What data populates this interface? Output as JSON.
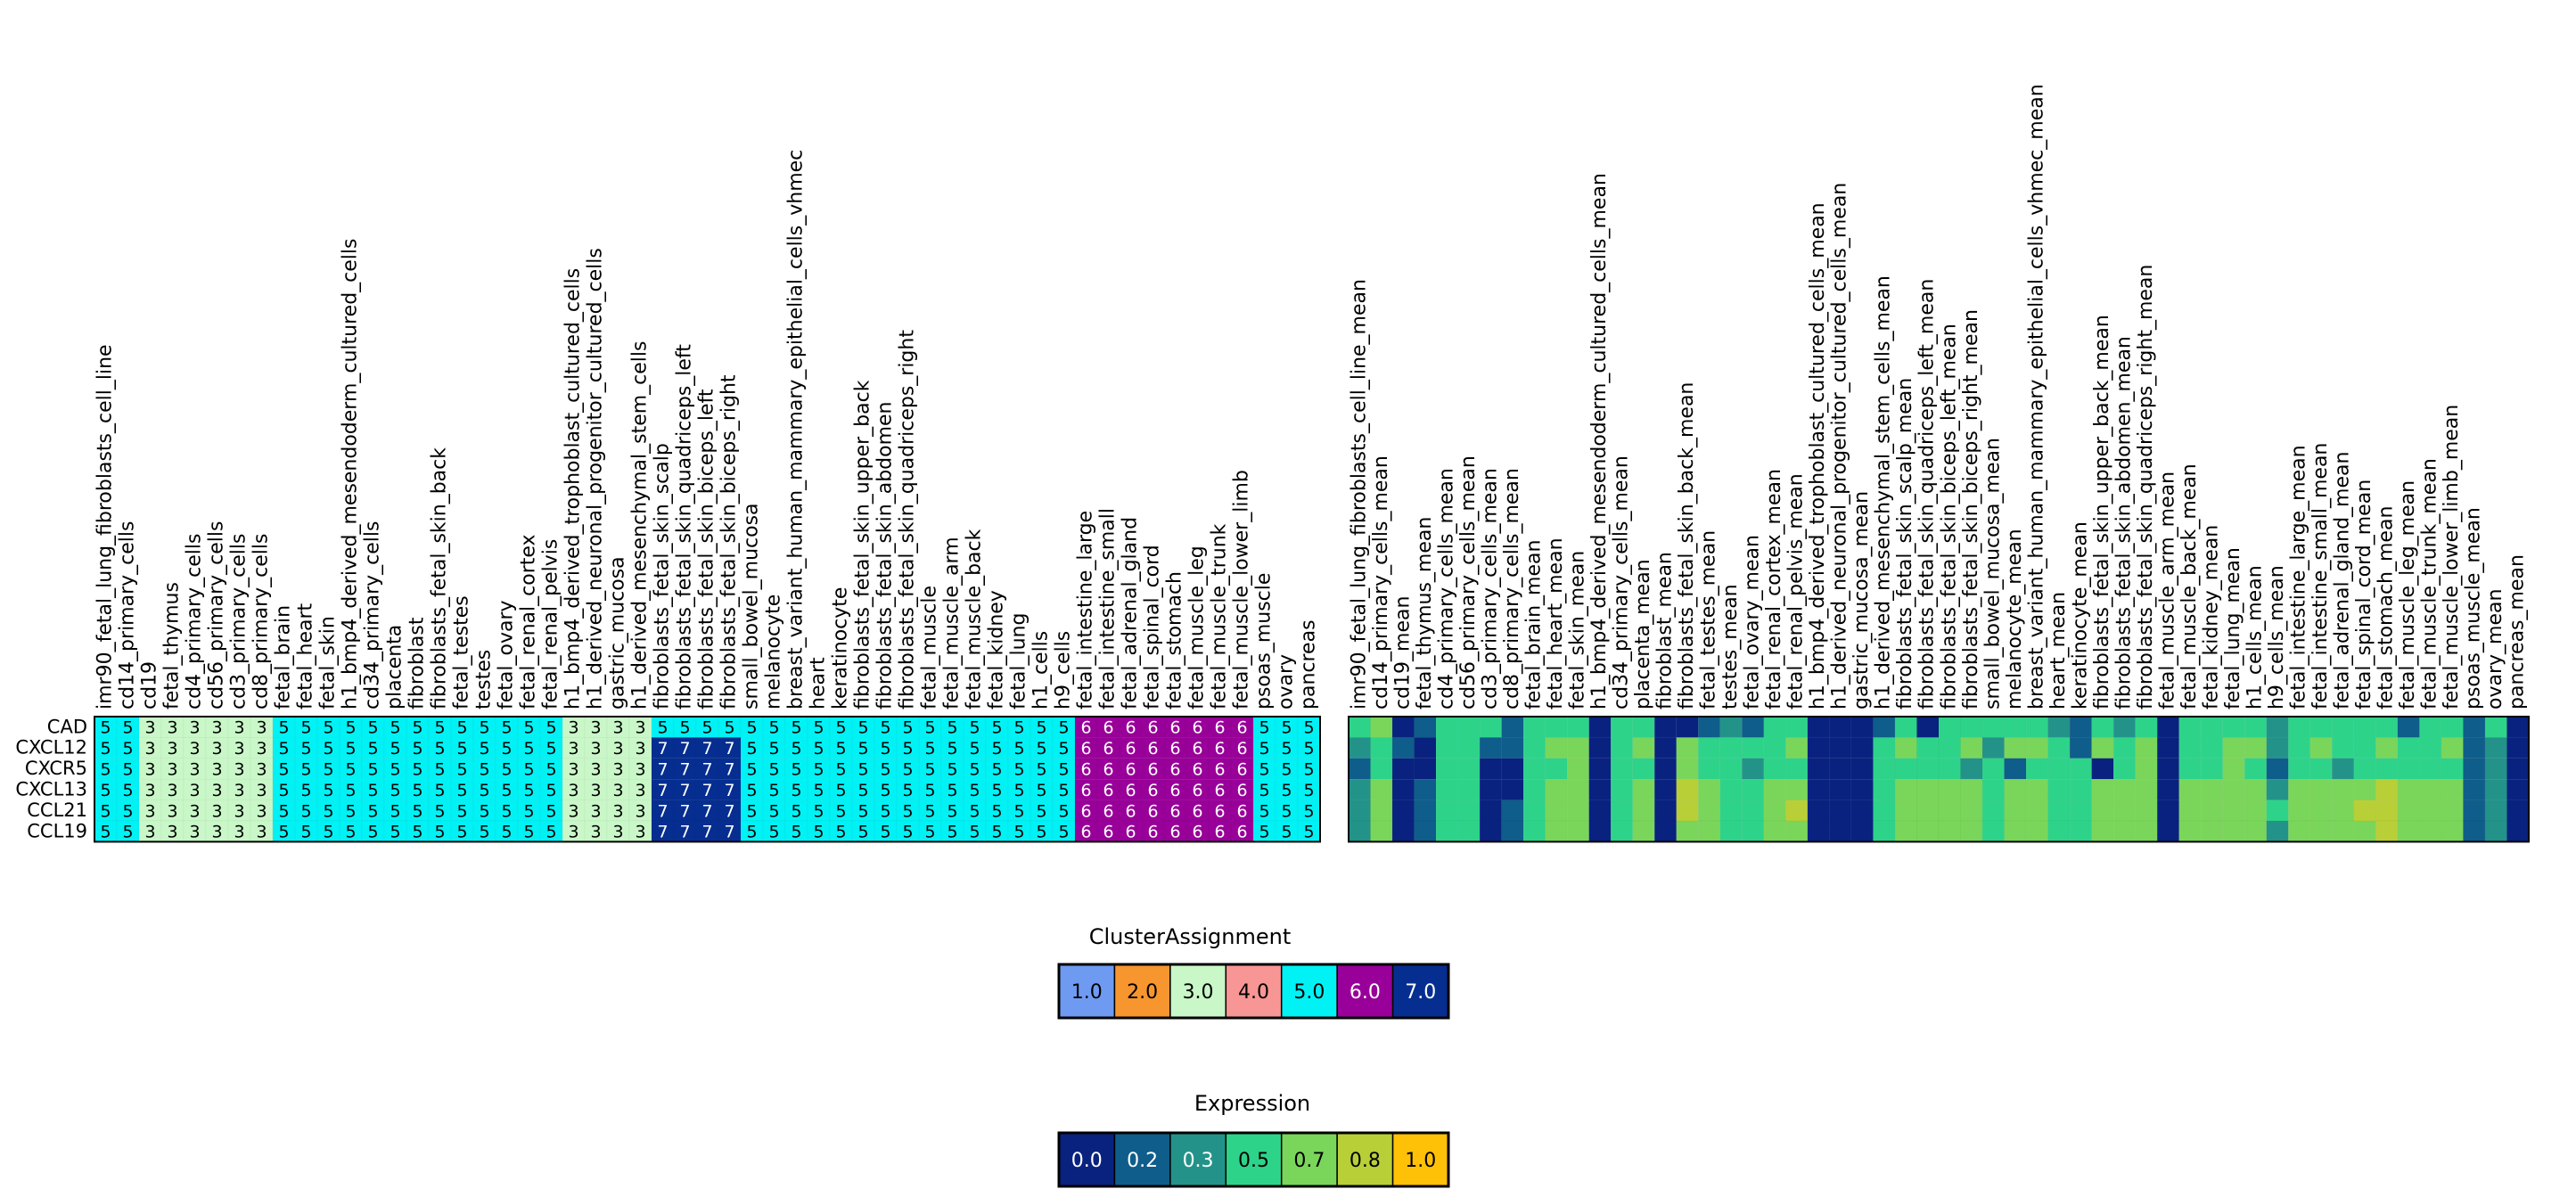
{
  "chart_data": [
    {
      "type": "heatmap",
      "title": "",
      "rows": [
        "CAD",
        "CXCL12",
        "CXCR5",
        "CXCL13",
        "CCL21",
        "CCL19"
      ],
      "columns": [
        "imr90_fetal_lung_fibroblasts_cell_line",
        "cd14_primary_cells",
        "cd19",
        "fetal_thymus",
        "cd4_primary_cells",
        "cd56_primary_cells",
        "cd3_primary_cells",
        "cd8_primary_cells",
        "fetal_brain",
        "fetal_heart",
        "fetal_skin",
        "h1_bmp4_derived_mesendoderm_cultured_cells",
        "cd34_primary_cells",
        "placenta",
        "fibroblast",
        "fibroblasts_fetal_skin_back",
        "fetal_testes",
        "testes",
        "fetal_ovary",
        "fetal_renal_cortex",
        "fetal_renal_pelvis",
        "h1_bmp4_derived_trophoblast_cultured_cells",
        "h1_derived_neuronal_progenitor_cultured_cells",
        "gastric_mucosa",
        "h1_derived_mesenchymal_stem_cells",
        "fibroblasts_fetal_skin_scalp",
        "fibroblasts_fetal_skin_quadriceps_left",
        "fibroblasts_fetal_skin_biceps_left",
        "fibroblasts_fetal_skin_biceps_right",
        "small_bowel_mucosa",
        "melanocyte",
        "breast_variant_human_mammary_epithelial_cells_vhmec",
        "heart",
        "keratinocyte",
        "fibroblasts_fetal_skin_upper_back",
        "fibroblasts_fetal_skin_abdomen",
        "fibroblasts_fetal_skin_quadriceps_right",
        "fetal_muscle",
        "fetal_muscle_arm",
        "fetal_muscle_back",
        "fetal_kidney",
        "fetal_lung",
        "h1_cells",
        "h9_cells",
        "fetal_intestine_large",
        "fetal_intestine_small",
        "fetal_adrenal_gland",
        "fetal_spinal_cord",
        "fetal_stomach",
        "fetal_muscle_leg",
        "fetal_muscle_trunk",
        "fetal_muscle_lower_limb",
        "psoas_muscle",
        "ovary",
        "pancreas"
      ],
      "cluster_by_column": [
        5,
        5,
        3,
        3,
        3,
        3,
        3,
        3,
        5,
        5,
        5,
        5,
        5,
        5,
        5,
        5,
        5,
        5,
        5,
        5,
        5,
        3,
        3,
        3,
        3,
        5,
        5,
        5,
        5,
        5,
        5,
        5,
        5,
        5,
        5,
        5,
        5,
        5,
        5,
        5,
        5,
        5,
        5,
        5,
        6,
        6,
        6,
        6,
        6,
        6,
        6,
        6,
        5,
        5,
        5
      ],
      "cad_cluster_overrides": [
        5,
        5,
        5,
        5
      ],
      "cad_override_start": 25
    },
    {
      "type": "heatmap",
      "title": "",
      "rows": [
        "CAD",
        "CXCL12",
        "CXCR5",
        "CXCL13",
        "CCL21",
        "CCL19"
      ],
      "columns": [
        "imr90_fetal_lung_fibroblasts_cell_line_mean",
        "cd14_primary_cells_mean",
        "cd19_mean",
        "fetal_thymus_mean",
        "cd4_primary_cells_mean",
        "cd56_primary_cells_mean",
        "cd3_primary_cells_mean",
        "cd8_primary_cells_mean",
        "fetal_brain_mean",
        "fetal_heart_mean",
        "fetal_skin_mean",
        "h1_bmp4_derived_mesendoderm_cultured_cells_mean",
        "cd34_primary_cells_mean",
        "placenta_mean",
        "fibroblast_mean",
        "fibroblasts_fetal_skin_back_mean",
        "fetal_testes_mean",
        "testes_mean",
        "fetal_ovary_mean",
        "fetal_renal_cortex_mean",
        "fetal_renal_pelvis_mean",
        "h1_bmp4_derived_trophoblast_cultured_cells_mean",
        "h1_derived_neuronal_progenitor_cultured_cells_mean",
        "gastric_mucosa_mean",
        "h1_derived_mesenchymal_stem_cells_mean",
        "fibroblasts_fetal_skin_scalp_mean",
        "fibroblasts_fetal_skin_quadriceps_left_mean",
        "fibroblasts_fetal_skin_biceps_left_mean",
        "fibroblasts_fetal_skin_biceps_right_mean",
        "small_bowel_mucosa_mean",
        "melanocyte_mean",
        "breast_variant_human_mammary_epithelial_cells_vhmec_mean",
        "heart_mean",
        "keratinocyte_mean",
        "fibroblasts_fetal_skin_upper_back_mean",
        "fibroblasts_fetal_skin_abdomen_mean",
        "fibroblasts_fetal_skin_quadriceps_right_mean",
        "fetal_muscle_arm_mean",
        "fetal_muscle_back_mean",
        "fetal_kidney_mean",
        "fetal_lung_mean",
        "h1_cells_mean",
        "h9_cells_mean",
        "fetal_intestine_large_mean",
        "fetal_intestine_small_mean",
        "fetal_adrenal_gland_mean",
        "fetal_spinal_cord_mean",
        "fetal_stomach_mean",
        "fetal_muscle_leg_mean",
        "fetal_muscle_trunk_mean",
        "fetal_muscle_lower_limb_mean",
        "psoas_muscle_mean",
        "ovary_mean",
        "pancreas_mean"
      ],
      "values": [
        [
          0.5,
          0.7,
          0.0,
          0.2,
          0.5,
          0.5,
          0.5,
          0.2,
          0.5,
          0.5,
          0.5,
          0.0,
          0.5,
          0.5,
          0.0,
          0.0,
          0.2,
          0.3,
          0.2,
          0.5,
          0.5,
          0.0,
          0.0,
          0.0,
          0.2,
          0.5,
          0.0,
          0.5,
          0.5,
          0.5,
          0.5,
          0.5,
          0.3,
          0.2,
          0.5,
          0.3,
          0.5,
          0.0,
          0.5,
          0.5,
          0.5,
          0.5,
          0.3,
          0.5,
          0.5,
          0.5,
          0.5,
          0.5,
          0.2,
          0.5,
          0.5,
          0.2,
          0.5,
          0.0
        ],
        [
          0.3,
          0.5,
          0.2,
          0.0,
          0.5,
          0.5,
          0.2,
          0.2,
          0.5,
          0.7,
          0.7,
          0.0,
          0.5,
          0.7,
          0.0,
          0.7,
          0.5,
          0.5,
          0.5,
          0.5,
          0.7,
          0.0,
          0.0,
          0.0,
          0.5,
          0.7,
          0.5,
          0.5,
          0.7,
          0.3,
          0.7,
          0.7,
          0.5,
          0.2,
          0.7,
          0.5,
          0.7,
          0.0,
          0.5,
          0.5,
          0.7,
          0.7,
          0.3,
          0.5,
          0.7,
          0.5,
          0.5,
          0.7,
          0.5,
          0.5,
          0.7,
          0.2,
          0.3,
          0.0
        ],
        [
          0.2,
          0.5,
          0.0,
          0.0,
          0.5,
          0.5,
          0.0,
          0.0,
          0.5,
          0.5,
          0.7,
          0.0,
          0.5,
          0.5,
          0.0,
          0.7,
          0.5,
          0.5,
          0.3,
          0.5,
          0.5,
          0.0,
          0.0,
          0.0,
          0.5,
          0.5,
          0.5,
          0.5,
          0.3,
          0.5,
          0.2,
          0.5,
          0.5,
          0.5,
          0.0,
          0.5,
          0.7,
          0.0,
          0.5,
          0.5,
          0.7,
          0.5,
          0.2,
          0.5,
          0.5,
          0.3,
          0.5,
          0.5,
          0.5,
          0.5,
          0.5,
          0.2,
          0.3,
          0.0
        ],
        [
          0.3,
          0.7,
          0.0,
          0.2,
          0.5,
          0.5,
          0.0,
          0.0,
          0.5,
          0.7,
          0.7,
          0.0,
          0.5,
          0.7,
          0.0,
          0.8,
          0.7,
          0.5,
          0.5,
          0.7,
          0.7,
          0.0,
          0.0,
          0.0,
          0.5,
          0.7,
          0.7,
          0.7,
          0.7,
          0.5,
          0.7,
          0.7,
          0.5,
          0.5,
          0.7,
          0.7,
          0.7,
          0.0,
          0.7,
          0.7,
          0.7,
          0.7,
          0.3,
          0.7,
          0.7,
          0.7,
          0.7,
          0.8,
          0.7,
          0.7,
          0.7,
          0.2,
          0.3,
          0.0
        ],
        [
          0.3,
          0.7,
          0.0,
          0.2,
          0.5,
          0.5,
          0.0,
          0.2,
          0.5,
          0.7,
          0.7,
          0.0,
          0.5,
          0.7,
          0.0,
          0.8,
          0.7,
          0.5,
          0.5,
          0.7,
          0.8,
          0.0,
          0.0,
          0.0,
          0.5,
          0.7,
          0.7,
          0.7,
          0.7,
          0.5,
          0.7,
          0.7,
          0.5,
          0.5,
          0.7,
          0.7,
          0.7,
          0.0,
          0.7,
          0.7,
          0.7,
          0.7,
          0.5,
          0.7,
          0.7,
          0.7,
          0.8,
          0.8,
          0.7,
          0.7,
          0.7,
          0.2,
          0.3,
          0.0
        ],
        [
          0.3,
          0.7,
          0.0,
          0.2,
          0.5,
          0.5,
          0.0,
          0.2,
          0.5,
          0.7,
          0.7,
          0.0,
          0.5,
          0.7,
          0.0,
          0.7,
          0.7,
          0.5,
          0.5,
          0.7,
          0.7,
          0.0,
          0.0,
          0.0,
          0.5,
          0.7,
          0.7,
          0.7,
          0.7,
          0.5,
          0.7,
          0.7,
          0.5,
          0.5,
          0.7,
          0.7,
          0.7,
          0.0,
          0.7,
          0.7,
          0.7,
          0.7,
          0.3,
          0.7,
          0.7,
          0.7,
          0.7,
          0.8,
          0.7,
          0.7,
          0.7,
          0.2,
          0.3,
          0.0
        ]
      ]
    }
  ],
  "colors": {
    "cluster": {
      "1": "#6e9af2",
      "2": "#f7952f",
      "3": "#c9f7c8",
      "4": "#f79694",
      "5": "#00f2f5",
      "6": "#990099",
      "7": "#062e91"
    },
    "expression": {
      "0.0": "#09227f",
      "0.2": "#0f5d8a",
      "0.3": "#23938a",
      "0.5": "#2ed38a",
      "0.7": "#7ad65a",
      "0.8": "#b9cf37",
      "1.0": "#ffc107"
    }
  },
  "legend_cluster": {
    "title": "ClusterAssignment",
    "labels": [
      "1.0",
      "2.0",
      "3.0",
      "4.0",
      "5.0",
      "6.0",
      "7.0"
    ],
    "keys": [
      "1",
      "2",
      "3",
      "4",
      "5",
      "6",
      "7"
    ]
  },
  "legend_expression": {
    "title": "Expression",
    "labels": [
      "0.0",
      "0.2",
      "0.3",
      "0.5",
      "0.7",
      "0.8",
      "1.0"
    ],
    "keys": [
      "0.0",
      "0.2",
      "0.3",
      "0.5",
      "0.7",
      "0.8",
      "1.0"
    ]
  }
}
